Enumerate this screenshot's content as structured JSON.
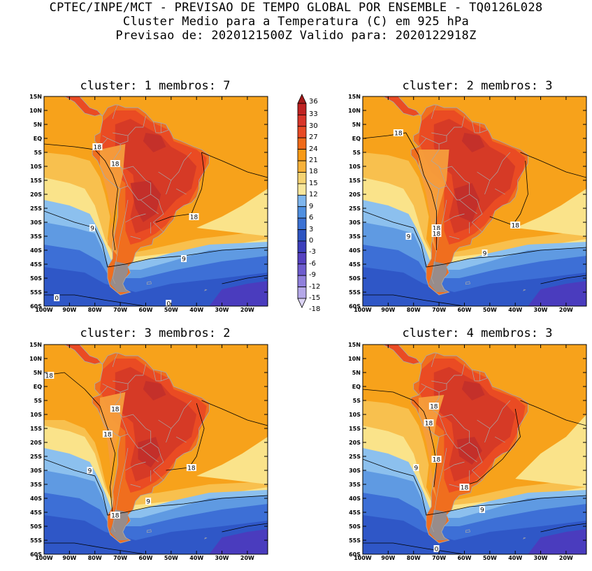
{
  "header": {
    "line1": "CPTEC/INPE/MCT - PREVISAO DE TEMPO GLOBAL POR ENSEMBLE - TQ0126L028",
    "line2": "Cluster Medio para a Temperatura (C) em 925 hPa",
    "line3": "Previsao de: 2020121500Z   Valido para: 2020122918Z"
  },
  "axes": {
    "y_ticks": [
      "15N",
      "10N",
      "5N",
      "EQ",
      "5S",
      "10S",
      "15S",
      "20S",
      "25S",
      "30S",
      "35S",
      "40S",
      "45S",
      "50S",
      "55S",
      "60S"
    ],
    "x_ticks": [
      "100W",
      "90W",
      "80W",
      "70W",
      "60W",
      "50W",
      "40W",
      "30W",
      "20W"
    ]
  },
  "panels": [
    {
      "title": "cluster: 1   membros: 7",
      "variant": 0,
      "contour_labels": [
        {
          "text": "18",
          "lon": -79,
          "lat": -3
        },
        {
          "text": "18",
          "lon": -72,
          "lat": -9
        },
        {
          "text": "18",
          "lon": -41,
          "lat": -28
        },
        {
          "text": "9",
          "lon": -81,
          "lat": -32
        },
        {
          "text": "9",
          "lon": -45,
          "lat": -43
        },
        {
          "text": "0",
          "lon": -95,
          "lat": -57
        },
        {
          "text": "0",
          "lon": -51,
          "lat": -59
        }
      ]
    },
    {
      "title": "cluster: 2   membros: 3",
      "variant": 1,
      "contour_labels": [
        {
          "text": "18",
          "lon": -86,
          "lat": 2
        },
        {
          "text": "18",
          "lon": -71,
          "lat": -32
        },
        {
          "text": "18",
          "lon": -71,
          "lat": -34
        },
        {
          "text": "18",
          "lon": -40,
          "lat": -31
        },
        {
          "text": "9",
          "lon": -82,
          "lat": -35
        },
        {
          "text": "9",
          "lon": -52,
          "lat": -41
        }
      ]
    },
    {
      "title": "cluster: 3   membros: 2",
      "variant": 2,
      "contour_labels": [
        {
          "text": "18",
          "lon": -98,
          "lat": 4
        },
        {
          "text": "18",
          "lon": -72,
          "lat": -8
        },
        {
          "text": "18",
          "lon": -75,
          "lat": -17
        },
        {
          "text": "18",
          "lon": -42,
          "lat": -29
        },
        {
          "text": "9",
          "lon": -82,
          "lat": -30
        },
        {
          "text": "9",
          "lon": -59,
          "lat": -41
        },
        {
          "text": "18",
          "lon": -72,
          "lat": -46
        }
      ]
    },
    {
      "title": "cluster: 4   membros: 3",
      "variant": 3,
      "contour_labels": [
        {
          "text": "18",
          "lon": -72,
          "lat": -7
        },
        {
          "text": "18",
          "lon": -74,
          "lat": -13
        },
        {
          "text": "18",
          "lon": -71,
          "lat": -26
        },
        {
          "text": "9",
          "lon": -79,
          "lat": -29
        },
        {
          "text": "18",
          "lon": -60,
          "lat": -36
        },
        {
          "text": "9",
          "lon": -53,
          "lat": -44
        },
        {
          "text": "0",
          "lon": -71,
          "lat": -58
        }
      ]
    }
  ],
  "colorbar": {
    "labels": [
      "36",
      "33",
      "30",
      "27",
      "24",
      "21",
      "18",
      "15",
      "12",
      "9",
      "6",
      "3",
      "0",
      "-3",
      "-6",
      "-9",
      "-12",
      "-15",
      "-18"
    ],
    "colors": [
      "#a51a1a",
      "#c02222",
      "#d8352a",
      "#e84a25",
      "#f06a18",
      "#f99a16",
      "#f8b23a",
      "#f5d372",
      "#f8e79c",
      "#7eb6ee",
      "#4f8fe0",
      "#3c72d4",
      "#2e55c2",
      "#3c3fbc",
      "#5541c0",
      "#6e5cce",
      "#9080dc",
      "#b5a8e8",
      "#dcd4f4"
    ]
  },
  "palette": {
    "ocean_warm": "#f7a21b",
    "ocean_mid": "#f8c04e",
    "ocean_cool": "#fae38a",
    "cold1": "#8cc0ee",
    "cold2": "#5f9ae2",
    "cold3": "#3d6fd6",
    "cold4": "#2f57c7",
    "cold5": "#4a3cbe",
    "land_hot": "#ea4b23",
    "land_hotter": "#d63a26",
    "land_max": "#c12f2b",
    "land_rim": "#f06e1e",
    "land_andes": "#f59d3c",
    "patagonia": "#8d8f97",
    "border": "#a9a9a9"
  }
}
